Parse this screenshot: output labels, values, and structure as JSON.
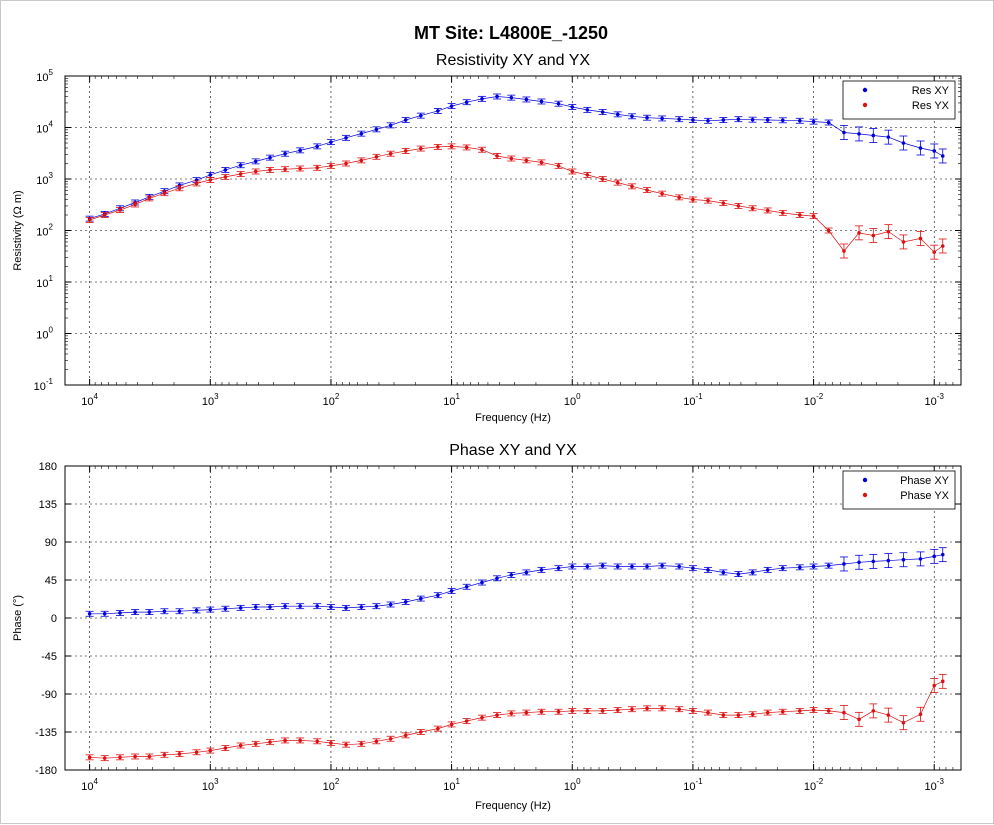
{
  "figure": {
    "title": "MT Site: L4800E_-1250"
  },
  "colors": {
    "xy": "#0000dd",
    "yx": "#dd1111",
    "grid": "#000000"
  },
  "chart_data": [
    {
      "type": "scatter",
      "title": "Resistivity XY and YX",
      "xlabel": "Frequency (Hz)",
      "ylabel": "Resistivity (Ω m)",
      "x_scale": "log",
      "y_scale": "log",
      "x_reversed": true,
      "xlim": [
        16000,
        0.0006
      ],
      "ylim": [
        0.1,
        100000
      ],
      "x_ticks": [
        10000,
        1000,
        100,
        10,
        1,
        0.1,
        0.01,
        0.001
      ],
      "x_tick_labels": [
        {
          "base": "10",
          "exp": "4"
        },
        {
          "base": "10",
          "exp": "3"
        },
        {
          "base": "10",
          "exp": "2"
        },
        {
          "base": "10",
          "exp": "1"
        },
        {
          "base": "10",
          "exp": "0"
        },
        {
          "base": "10",
          "exp": "-1"
        },
        {
          "base": "10",
          "exp": "-2"
        },
        {
          "base": "10",
          "exp": "-3"
        }
      ],
      "y_ticks": [
        0.1,
        1,
        10,
        100,
        1000,
        10000,
        100000
      ],
      "y_tick_labels": [
        {
          "base": "10",
          "exp": "-1"
        },
        {
          "base": "10",
          "exp": "0"
        },
        {
          "base": "10",
          "exp": "1"
        },
        {
          "base": "10",
          "exp": "2"
        },
        {
          "base": "10",
          "exp": "3"
        },
        {
          "base": "10",
          "exp": "4"
        },
        {
          "base": "10",
          "exp": "5"
        }
      ],
      "grid": true,
      "legend": "top-right",
      "series": [
        {
          "name": "Res XY",
          "color": "#0000dd",
          "x": [
            10000,
            7500,
            5600,
            4200,
            3200,
            2400,
            1800,
            1300,
            1000,
            750,
            560,
            420,
            320,
            240,
            180,
            130,
            100,
            75,
            56,
            42,
            32,
            24,
            18,
            13,
            10,
            7.5,
            5.6,
            4.2,
            3.2,
            2.4,
            1.8,
            1.3,
            1,
            0.75,
            0.56,
            0.42,
            0.32,
            0.24,
            0.18,
            0.13,
            0.1,
            0.075,
            0.056,
            0.042,
            0.032,
            0.024,
            0.018,
            0.013,
            0.01,
            0.0075,
            0.0056,
            0.0042,
            0.0032,
            0.0024,
            0.0018,
            0.0013,
            0.001,
            0.00085
          ],
          "values": [
            170,
            210,
            270,
            350,
            450,
            580,
            750,
            950,
            1200,
            1500,
            1850,
            2200,
            2600,
            3100,
            3600,
            4300,
            5200,
            6300,
            7600,
            9200,
            11000,
            14000,
            17000,
            21000,
            26000,
            31000,
            36000,
            40000,
            38000,
            35000,
            32000,
            29000,
            25000,
            22000,
            20000,
            18000,
            16500,
            15500,
            15000,
            14500,
            14000,
            13500,
            14000,
            14500,
            14200,
            14000,
            13800,
            13500,
            13000,
            12500,
            8000,
            7500,
            7000,
            6500,
            5000,
            4000,
            3500,
            2800
          ]
        },
        {
          "name": "Res YX",
          "color": "#dd1111",
          "x": [
            10000,
            7500,
            5600,
            4200,
            3200,
            2400,
            1800,
            1300,
            1000,
            750,
            560,
            420,
            320,
            240,
            180,
            130,
            100,
            75,
            56,
            42,
            32,
            24,
            18,
            13,
            10,
            7.5,
            5.6,
            4.2,
            3.2,
            2.4,
            1.8,
            1.3,
            1,
            0.75,
            0.56,
            0.42,
            0.32,
            0.24,
            0.18,
            0.13,
            0.1,
            0.075,
            0.056,
            0.042,
            0.032,
            0.024,
            0.018,
            0.013,
            0.01,
            0.0075,
            0.0056,
            0.0042,
            0.0032,
            0.0024,
            0.0018,
            0.0013,
            0.001,
            0.00085
          ],
          "values": [
            160,
            200,
            250,
            320,
            420,
            530,
            660,
            820,
            960,
            1100,
            1250,
            1400,
            1500,
            1550,
            1600,
            1650,
            1800,
            2000,
            2300,
            2700,
            3100,
            3500,
            3900,
            4200,
            4300,
            4100,
            3700,
            2800,
            2500,
            2300,
            2100,
            1800,
            1400,
            1200,
            1000,
            850,
            720,
            610,
            520,
            440,
            400,
            380,
            340,
            300,
            270,
            245,
            220,
            200,
            190,
            100,
            40,
            90,
            80,
            95,
            60,
            70,
            38,
            50
          ]
        }
      ]
    },
    {
      "type": "scatter",
      "title": "Phase XY and YX",
      "xlabel": "Frequency (Hz)",
      "ylabel": "Phase (°)",
      "x_scale": "log",
      "y_scale": "linear",
      "x_reversed": true,
      "xlim": [
        16000,
        0.0006
      ],
      "ylim": [
        -180,
        180
      ],
      "x_ticks": [
        10000,
        1000,
        100,
        10,
        1,
        0.1,
        0.01,
        0.001
      ],
      "x_tick_labels": [
        {
          "base": "10",
          "exp": "4"
        },
        {
          "base": "10",
          "exp": "3"
        },
        {
          "base": "10",
          "exp": "2"
        },
        {
          "base": "10",
          "exp": "1"
        },
        {
          "base": "10",
          "exp": "0"
        },
        {
          "base": "10",
          "exp": "-1"
        },
        {
          "base": "10",
          "exp": "-2"
        },
        {
          "base": "10",
          "exp": "-3"
        }
      ],
      "y_ticks": [
        -180,
        -135,
        -90,
        -45,
        0,
        45,
        90,
        135,
        180
      ],
      "y_tick_labels": [
        "-180",
        "-135",
        "-90",
        "-45",
        "0",
        "45",
        "90",
        "135",
        "180"
      ],
      "grid": true,
      "legend": "top-right",
      "series": [
        {
          "name": "Phase XY",
          "color": "#0000dd",
          "x": [
            10000,
            7500,
            5600,
            4200,
            3200,
            2400,
            1800,
            1300,
            1000,
            750,
            560,
            420,
            320,
            240,
            180,
            130,
            100,
            75,
            56,
            42,
            32,
            24,
            18,
            13,
            10,
            7.5,
            5.6,
            4.2,
            3.2,
            2.4,
            1.8,
            1.3,
            1,
            0.75,
            0.56,
            0.42,
            0.32,
            0.24,
            0.18,
            0.13,
            0.1,
            0.075,
            0.056,
            0.042,
            0.032,
            0.024,
            0.018,
            0.013,
            0.01,
            0.0075,
            0.0056,
            0.0042,
            0.0032,
            0.0024,
            0.0018,
            0.0013,
            0.001,
            0.00085
          ],
          "values": [
            5,
            5,
            6,
            7,
            7,
            8,
            8,
            9,
            10,
            11,
            12,
            13,
            13,
            14,
            14,
            14,
            13,
            12,
            13,
            14,
            16,
            19,
            23,
            27,
            32,
            37,
            42,
            47,
            51,
            54,
            57,
            59,
            61,
            61,
            62,
            61,
            61,
            61,
            62,
            61,
            59,
            57,
            54,
            52,
            54,
            57,
            59,
            60,
            61,
            62,
            64,
            66,
            67,
            68,
            69,
            70,
            73,
            75
          ]
        },
        {
          "name": "Phase YX",
          "color": "#dd1111",
          "x": [
            10000,
            7500,
            5600,
            4200,
            3200,
            2400,
            1800,
            1300,
            1000,
            750,
            560,
            420,
            320,
            240,
            180,
            130,
            100,
            75,
            56,
            42,
            32,
            24,
            18,
            13,
            10,
            7.5,
            5.6,
            4.2,
            3.2,
            2.4,
            1.8,
            1.3,
            1,
            0.75,
            0.56,
            0.42,
            0.32,
            0.24,
            0.18,
            0.13,
            0.1,
            0.075,
            0.056,
            0.042,
            0.032,
            0.024,
            0.018,
            0.013,
            0.01,
            0.0075,
            0.0056,
            0.0042,
            0.0032,
            0.0024,
            0.0018,
            0.0013,
            0.001,
            0.00085
          ],
          "values": [
            -165,
            -166,
            -165,
            -164,
            -164,
            -162,
            -161,
            -159,
            -157,
            -154,
            -151,
            -149,
            -147,
            -145,
            -145,
            -146,
            -148,
            -150,
            -149,
            -146,
            -143,
            -139,
            -135,
            -131,
            -126,
            -122,
            -118,
            -115,
            -113,
            -112,
            -111,
            -111,
            -110,
            -110,
            -110,
            -109,
            -108,
            -107,
            -107,
            -108,
            -110,
            -112,
            -115,
            -115,
            -114,
            -112,
            -111,
            -110,
            -109,
            -110,
            -112,
            -120,
            -110,
            -115,
            -124,
            -114,
            -80,
            -75
          ]
        }
      ]
    }
  ]
}
